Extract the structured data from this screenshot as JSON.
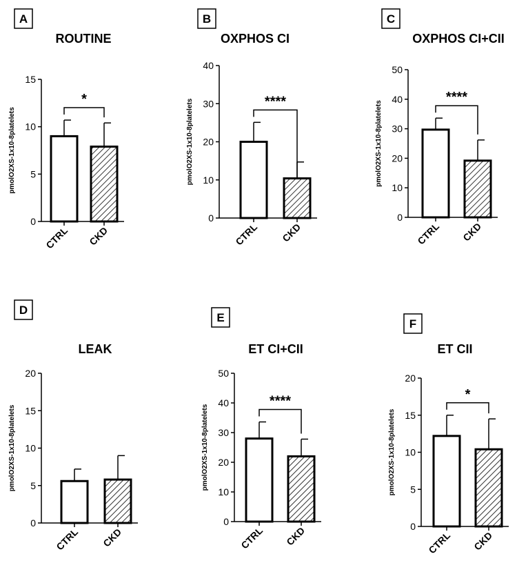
{
  "chart_data": [
    {
      "panel": "A",
      "type": "bar",
      "title": "ROUTINE",
      "categories": [
        "CTRL",
        "CKD"
      ],
      "values": [
        9.0,
        7.9
      ],
      "errors": [
        1.7,
        2.5
      ],
      "ylabel": "pmolO2XS-1x10-8platelets",
      "ylim": [
        0,
        15
      ],
      "yticks": [
        0,
        5,
        10,
        15
      ],
      "significance": "*"
    },
    {
      "panel": "B",
      "type": "bar",
      "title": "OXPHOS CI",
      "categories": [
        "CTRL",
        "CKD"
      ],
      "values": [
        20.0,
        10.4
      ],
      "errors": [
        5.1,
        4.3
      ],
      "ylabel": "pmolO2XS-1x10-8platelets",
      "ylim": [
        0,
        40
      ],
      "yticks": [
        0,
        10,
        20,
        30,
        40
      ],
      "significance": "****"
    },
    {
      "panel": "C",
      "type": "bar",
      "title": "OXPHOS CI+CII",
      "categories": [
        "CTRL",
        "CKD"
      ],
      "values": [
        29.7,
        19.2
      ],
      "errors": [
        3.9,
        7.0
      ],
      "ylabel": "pmolO2XS-1x10-8platelets",
      "ylim": [
        0,
        50
      ],
      "yticks": [
        0,
        10,
        20,
        30,
        40,
        50
      ],
      "significance": "****"
    },
    {
      "panel": "D",
      "type": "bar",
      "title": "LEAK",
      "categories": [
        "CTRL",
        "CKD"
      ],
      "values": [
        5.6,
        5.8
      ],
      "errors": [
        1.6,
        3.2
      ],
      "ylabel": "pmolO2XS-1x10-8platelets",
      "ylim": [
        0,
        20
      ],
      "yticks": [
        0,
        5,
        10,
        15,
        20
      ],
      "significance": ""
    },
    {
      "panel": "E",
      "type": "bar",
      "title": "ET CI+CII",
      "categories": [
        "CTRL",
        "CKD"
      ],
      "values": [
        28.0,
        22.0
      ],
      "errors": [
        5.6,
        5.8
      ],
      "ylabel": "pmolO2XS-1x10-8platelets",
      "ylim": [
        0,
        50
      ],
      "yticks": [
        0,
        10,
        20,
        30,
        40,
        50
      ],
      "significance": "****"
    },
    {
      "panel": "F",
      "type": "bar",
      "title": "ET CII",
      "categories": [
        "CTRL",
        "CKD"
      ],
      "values": [
        12.2,
        10.4
      ],
      "errors": [
        2.8,
        4.1
      ],
      "ylabel": "pmolO2XS-1x10-8platelets",
      "ylim": [
        0,
        20
      ],
      "yticks": [
        0,
        5,
        10,
        15,
        20
      ],
      "significance": "*"
    }
  ]
}
